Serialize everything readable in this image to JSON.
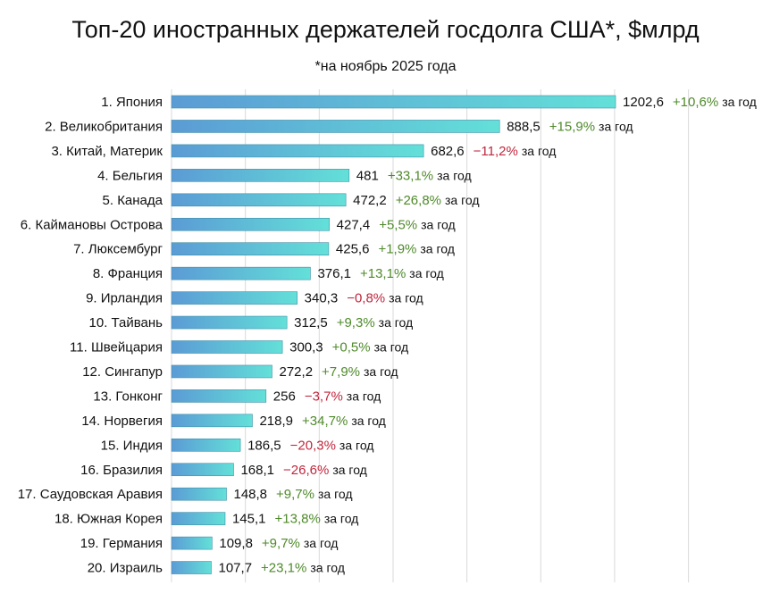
{
  "chart_data": {
    "type": "bar",
    "orientation": "horizontal",
    "title": "Топ-20 иностранных держателей госдолга США*, $млрд",
    "subtitle": "*на ноябрь 2025 года",
    "categories": [
      "1. Япония",
      "2. Великобритания",
      "3. Китай, Материк",
      "4. Бельгия",
      "5. Канада",
      "6. Каймановы Острова",
      "7. Люксембург",
      "8. Франция",
      "9. Ирландия",
      "10. Тайвань",
      "11. Швейцария",
      "12. Сингапур",
      "13. Гонконг",
      "14. Норвегия",
      "15. Индия",
      "16. Бразилия",
      "17. Саудовская Аравия",
      "18. Южная Корея",
      "19. Германия",
      "20. Израиль"
    ],
    "values": [
      1202.6,
      888.5,
      682.6,
      481,
      472.2,
      427.4,
      425.6,
      376.1,
      340.3,
      312.5,
      300.3,
      272.2,
      256,
      218.9,
      186.5,
      168.1,
      148.8,
      145.1,
      109.8,
      107.7
    ],
    "value_labels": [
      "1202,6",
      "888,5",
      "682,6",
      "481",
      "472,2",
      "427,4",
      "425,6",
      "376,1",
      "340,3",
      "312,5",
      "300,3",
      "272,2",
      "256",
      "218,9",
      "186,5",
      "168,1",
      "148,8",
      "145,1",
      "109,8",
      "107,7"
    ],
    "changes": [
      "+10,6%",
      "+15,9%",
      "−11,2%",
      "+33,1%",
      "+26,8%",
      "+5,5%",
      "+1,9%",
      "+13,1%",
      "−0,8%",
      "+9,3%",
      "+0,5%",
      "+7,9%",
      "−3,7%",
      "+34,7%",
      "−20,3%",
      "−26,6%",
      "+9,7%",
      "+13,8%",
      "+9,7%",
      "+23,1%"
    ],
    "change_suffix": "за год",
    "xlim": [
      0,
      1400
    ],
    "grid": true,
    "legend": "none",
    "colors": {
      "bar_start": "#5b9bd5",
      "bar_end": "#63e0d8",
      "positive": "#4f8a2b",
      "negative": "#c0273d",
      "grid": "#d9d9d9"
    }
  }
}
